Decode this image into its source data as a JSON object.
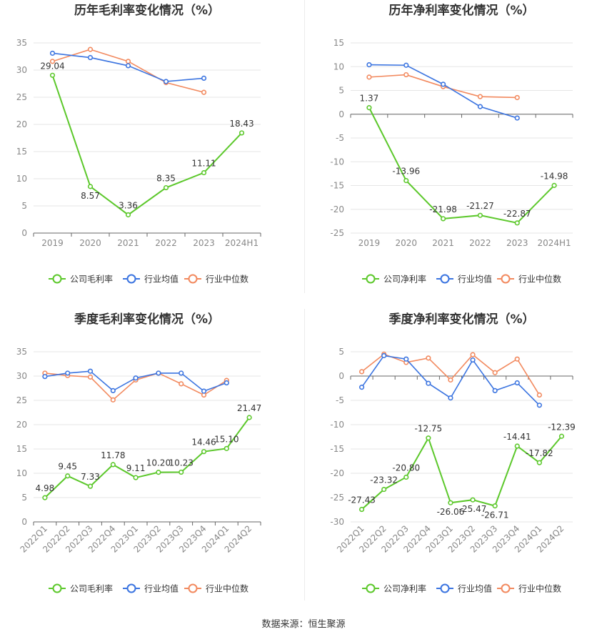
{
  "source_label": "数据来源：恒生聚源",
  "colors": {
    "company": "#5cc82b",
    "industry_avg": "#3b74e0",
    "industry_median": "#f2895e",
    "grid": "#e6e6e6",
    "axis": "#666666",
    "tick": "#888888",
    "title": "#333333",
    "label": "#333333"
  },
  "chart_data": [
    {
      "type": "line",
      "title": "历年毛利率变化情况（%）",
      "categories": [
        "2019",
        "2020",
        "2021",
        "2022",
        "2023",
        "2024H1"
      ],
      "ylim": [
        0,
        35
      ],
      "yticks": [
        0,
        5,
        10,
        15,
        20,
        25,
        30,
        35
      ],
      "grid": true,
      "legend_position": "bottom",
      "series": [
        {
          "name": "公司毛利率",
          "role": "company",
          "values": [
            29.04,
            8.57,
            3.36,
            8.35,
            11.11,
            18.43
          ],
          "labels": [
            "29.04",
            "8.57",
            "3.36",
            "8.35",
            "11.11",
            "18.43"
          ]
        },
        {
          "name": "行业均值",
          "role": "industry_avg",
          "values": [
            33.1,
            32.3,
            30.8,
            27.9,
            28.5,
            null
          ]
        },
        {
          "name": "行业中位数",
          "role": "industry_median",
          "values": [
            31.6,
            33.8,
            31.6,
            27.7,
            25.9,
            null
          ]
        }
      ]
    },
    {
      "type": "line",
      "title": "历年净利率变化情况（%）",
      "categories": [
        "2019",
        "2020",
        "2021",
        "2022",
        "2023",
        "2024H1"
      ],
      "ylim": [
        -25,
        15
      ],
      "yticks": [
        -25,
        -20,
        -15,
        -10,
        -5,
        0,
        5,
        10,
        15
      ],
      "grid": true,
      "legend_position": "bottom",
      "series": [
        {
          "name": "公司净利率",
          "role": "company",
          "values": [
            1.37,
            -13.96,
            -21.98,
            -21.27,
            -22.87,
            -14.98
          ],
          "labels": [
            "1.37",
            "-13.96",
            "-21.98",
            "-21.27",
            "-22.87",
            "-14.98"
          ]
        },
        {
          "name": "行业均值",
          "role": "industry_avg",
          "values": [
            10.4,
            10.3,
            6.3,
            1.6,
            -0.8,
            null
          ]
        },
        {
          "name": "行业中位数",
          "role": "industry_median",
          "values": [
            7.8,
            8.3,
            5.8,
            3.7,
            3.5,
            null
          ]
        }
      ]
    },
    {
      "type": "line",
      "title": "季度毛利率变化情况（%）",
      "categories": [
        "2022Q1",
        "2022Q2",
        "2022Q3",
        "2022Q4",
        "2023Q1",
        "2023Q2",
        "2023Q3",
        "2023Q4",
        "2024Q1",
        "2024Q2"
      ],
      "ylim": [
        0,
        35
      ],
      "yticks": [
        0,
        5,
        10,
        15,
        20,
        25,
        30,
        35
      ],
      "grid": true,
      "legend_position": "bottom",
      "series": [
        {
          "name": "公司毛利率",
          "role": "company",
          "values": [
            4.98,
            9.45,
            7.33,
            11.78,
            9.11,
            10.2,
            10.23,
            14.46,
            15.1,
            21.47
          ],
          "labels": [
            "4.98",
            "9.45",
            "7.33",
            "11.78",
            "9.11",
            "10.20",
            "10.23",
            "14.46",
            "15.10",
            "21.47"
          ]
        },
        {
          "name": "行业均值",
          "role": "industry_avg",
          "values": [
            29.9,
            30.6,
            31.0,
            27.0,
            29.6,
            30.6,
            30.6,
            26.9,
            28.6,
            null
          ]
        },
        {
          "name": "行业中位数",
          "role": "industry_median",
          "values": [
            30.6,
            30.1,
            29.8,
            25.1,
            29.2,
            30.6,
            28.4,
            26.1,
            29.1,
            null
          ]
        }
      ]
    },
    {
      "type": "line",
      "title": "季度净利率变化情况（%）",
      "categories": [
        "2022Q1",
        "2022Q2",
        "2022Q3",
        "2022Q4",
        "2023Q1",
        "2023Q2",
        "2023Q3",
        "2023Q4",
        "2024Q1",
        "2024Q2"
      ],
      "ylim": [
        -30,
        5
      ],
      "yticks": [
        -30,
        -25,
        -20,
        -15,
        -10,
        -5,
        0,
        5
      ],
      "grid": true,
      "legend_position": "bottom",
      "series": [
        {
          "name": "公司净利率",
          "role": "company",
          "values": [
            -27.43,
            -23.32,
            -20.8,
            -12.75,
            -26.06,
            -25.47,
            -26.71,
            -14.41,
            -17.82,
            -12.39
          ],
          "labels": [
            "-27.43",
            "-23.32",
            "-20.80",
            "-12.75",
            "-26.06",
            "-25.47",
            "-26.71",
            "-14.41",
            "-17.82",
            "-12.39"
          ]
        },
        {
          "name": "行业均值",
          "role": "industry_avg",
          "values": [
            -2.3,
            4.2,
            3.5,
            -1.5,
            -4.5,
            3.3,
            -3.0,
            -1.4,
            -6.0,
            null
          ]
        },
        {
          "name": "行业中位数",
          "role": "industry_median",
          "values": [
            0.9,
            4.5,
            2.8,
            3.7,
            -0.8,
            4.4,
            0.7,
            3.5,
            -3.9,
            null
          ]
        }
      ]
    }
  ]
}
